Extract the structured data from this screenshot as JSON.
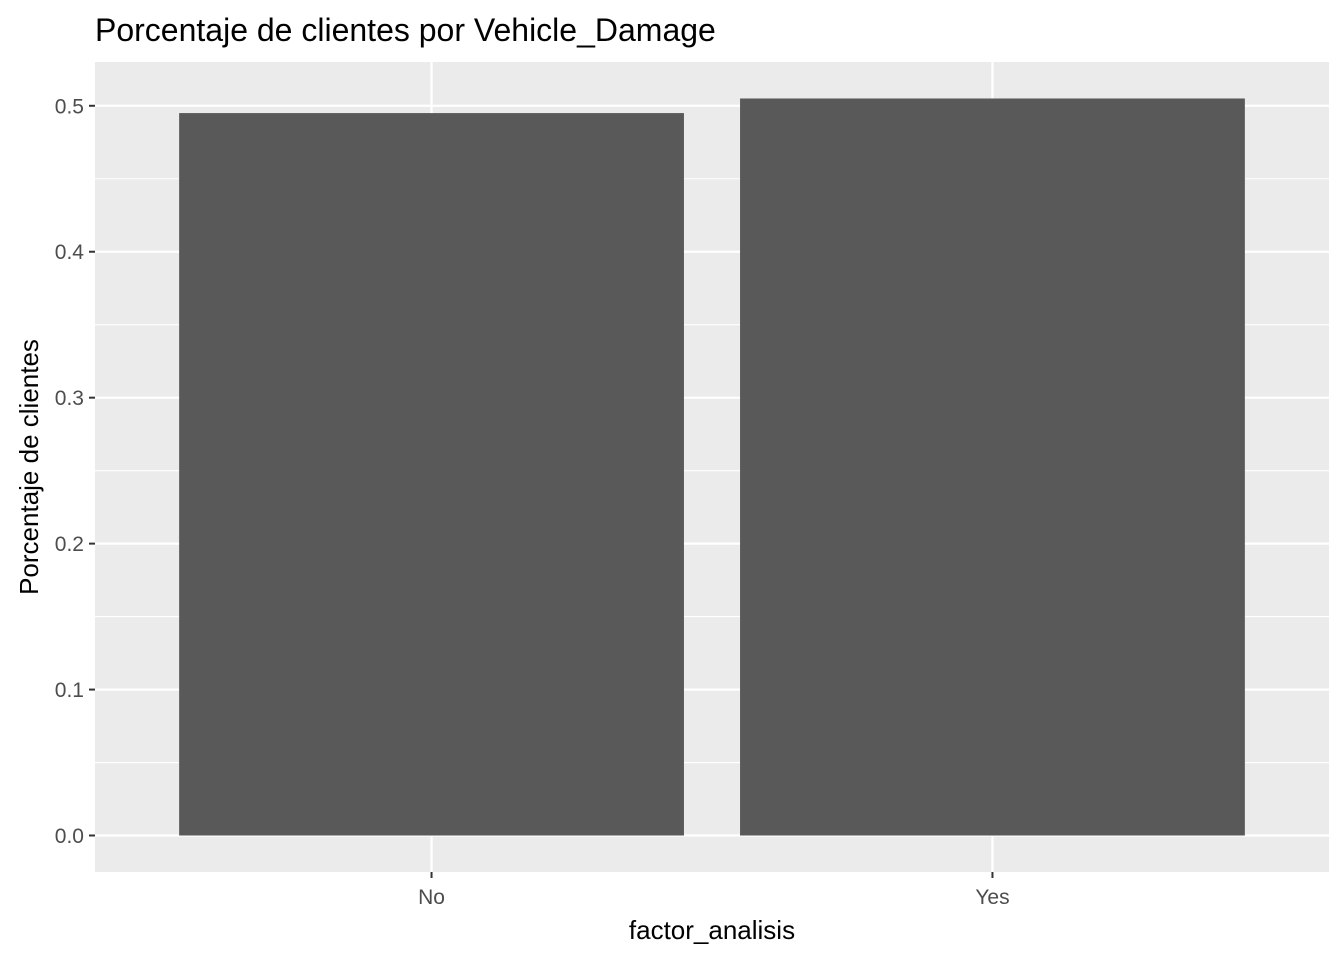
{
  "chart_data": {
    "type": "bar",
    "title": "Porcentaje de clientes por Vehicle_Damage",
    "xlabel": "factor_analisis",
    "ylabel": "Porcentaje de clientes",
    "categories": [
      "No",
      "Yes"
    ],
    "values": [
      0.495,
      0.505
    ],
    "ylim": [
      -0.025,
      0.53
    ],
    "yticks": [
      0.0,
      0.1,
      0.2,
      0.3,
      0.4,
      0.5
    ],
    "ytick_labels": [
      "0.0",
      "0.1",
      "0.2",
      "0.3",
      "0.4",
      "0.5"
    ],
    "grid": true,
    "legend": "none",
    "colors": {
      "bar": "#595959",
      "panel_background": "#ebebeb",
      "grid_line": "#ffffff",
      "tick_text": "#4d4d4d",
      "tick_mark": "#333333"
    }
  }
}
